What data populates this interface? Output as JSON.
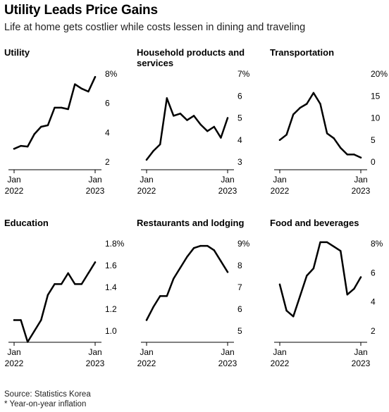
{
  "title": "Utility Leads Price Gains",
  "subtitle": "Life at home gets costlier while costs lessen in dining and traveling",
  "source_line1": "Source: Statistics Korea",
  "source_line2": "* Year-on-year inflation",
  "chart_data": [
    {
      "type": "line",
      "title": "Utility",
      "x_tick_labels": [
        [
          "Jan",
          "2022"
        ],
        [
          "Jan",
          "2023"
        ]
      ],
      "ylim": [
        2,
        8
      ],
      "y_ticks": [
        2,
        4,
        6,
        8
      ],
      "y_tick_labels": [
        "2",
        "4",
        "6",
        "8%"
      ],
      "x": [
        0,
        1,
        2,
        3,
        4,
        5,
        6,
        7,
        8,
        9,
        10,
        11,
        12
      ],
      "values": [
        2.9,
        3.1,
        3.05,
        3.9,
        4.4,
        4.5,
        5.7,
        5.7,
        5.6,
        7.3,
        7.0,
        6.8,
        7.8
      ]
    },
    {
      "type": "line",
      "title": "Household products and services",
      "x_tick_labels": [
        [
          "Jan",
          "2022"
        ],
        [
          "Jan",
          "2023"
        ]
      ],
      "ylim": [
        3,
        7
      ],
      "y_ticks": [
        3,
        4,
        5,
        6,
        7
      ],
      "y_tick_labels": [
        "3",
        "4",
        "5",
        "6",
        "7%"
      ],
      "x": [
        0,
        1,
        2,
        3,
        4,
        5,
        6,
        7,
        8,
        9,
        10,
        11,
        12
      ],
      "values": [
        3.1,
        3.5,
        3.8,
        5.9,
        5.1,
        5.2,
        4.9,
        5.1,
        4.7,
        4.4,
        4.6,
        4.1,
        5.0
      ]
    },
    {
      "type": "line",
      "title": "Transportation",
      "x_tick_labels": [
        [
          "Jan",
          "2022"
        ],
        [
          "Jan",
          "2023"
        ]
      ],
      "ylim": [
        0,
        20
      ],
      "y_ticks": [
        0,
        5,
        10,
        15,
        20
      ],
      "y_tick_labels": [
        "0",
        "5",
        "10",
        "15",
        "20%"
      ],
      "x": [
        0,
        1,
        2,
        3,
        4,
        5,
        6,
        7,
        8,
        9,
        10,
        11,
        12
      ],
      "values": [
        5.0,
        6.2,
        10.8,
        12.3,
        13.2,
        15.7,
        13.2,
        6.5,
        5.4,
        3.2,
        1.7,
        1.7,
        1.0
      ]
    },
    {
      "type": "line",
      "title": "Education",
      "x_tick_labels": [
        [
          "Jan",
          "2022"
        ],
        [
          "Jan",
          "2023"
        ]
      ],
      "ylim": [
        1.0,
        1.8
      ],
      "y_ticks": [
        1.0,
        1.2,
        1.4,
        1.6,
        1.8
      ],
      "y_tick_labels": [
        "1.0",
        "1.2",
        "1.4",
        "1.6",
        "1.8%"
      ],
      "x": [
        0,
        1,
        2,
        3,
        4,
        5,
        6,
        7,
        8,
        9,
        10,
        11,
        12
      ],
      "values": [
        1.1,
        1.1,
        0.9,
        1.0,
        1.1,
        1.33,
        1.43,
        1.43,
        1.53,
        1.43,
        1.43,
        1.53,
        1.63
      ]
    },
    {
      "type": "line",
      "title": "Restaurants and lodging",
      "x_tick_labels": [
        [
          "Jan",
          "2022"
        ],
        [
          "Jan",
          "2023"
        ]
      ],
      "ylim": [
        5,
        9
      ],
      "y_ticks": [
        5,
        6,
        7,
        8,
        9
      ],
      "y_tick_labels": [
        "5",
        "6",
        "7",
        "8",
        "9%"
      ],
      "x": [
        0,
        1,
        2,
        3,
        4,
        5,
        6,
        7,
        8,
        9,
        10,
        11,
        12
      ],
      "values": [
        5.5,
        6.1,
        6.6,
        6.6,
        7.4,
        7.9,
        8.4,
        8.8,
        8.9,
        8.9,
        8.7,
        8.2,
        7.7
      ]
    },
    {
      "type": "line",
      "title": "Food and beverages",
      "x_tick_labels": [
        [
          "Jan",
          "2022"
        ],
        [
          "Jan",
          "2023"
        ]
      ],
      "ylim": [
        2,
        8
      ],
      "y_ticks": [
        2,
        4,
        6,
        8
      ],
      "y_tick_labels": [
        "2",
        "4",
        "6",
        "8%"
      ],
      "x": [
        0,
        1,
        2,
        3,
        4,
        5,
        6,
        7,
        8,
        9,
        10,
        11,
        12
      ],
      "values": [
        5.2,
        3.4,
        3.0,
        4.4,
        5.8,
        6.3,
        8.1,
        8.1,
        7.8,
        7.5,
        4.5,
        4.9,
        5.7
      ]
    }
  ]
}
